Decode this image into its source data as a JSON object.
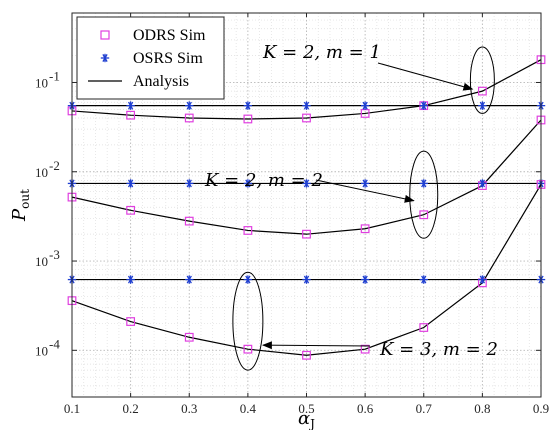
{
  "chart_data": {
    "type": "line",
    "xlabel": "α",
    "xlabel_sub": "J",
    "ylabel": "P",
    "ylabel_sub": "out",
    "xlim": [
      0.1,
      0.9
    ],
    "ylim": [
      3e-05,
      0.6
    ],
    "yscale": "log",
    "grid": true,
    "legend_position": "top-left",
    "x_ticks": [
      "0.1",
      "0.2",
      "0.3",
      "0.4",
      "0.5",
      "0.6",
      "0.7",
      "0.8",
      "0.9"
    ],
    "y_ticks": [
      {
        "value": 0.0001,
        "base": "10",
        "exp": "-4"
      },
      {
        "value": 0.001,
        "base": "10",
        "exp": "-3"
      },
      {
        "value": 0.01,
        "base": "10",
        "exp": "-2"
      },
      {
        "value": 0.1,
        "base": "10",
        "exp": "-1"
      }
    ],
    "x": [
      0.1,
      0.2,
      0.3,
      0.4,
      0.5,
      0.6,
      0.7,
      0.8,
      0.9
    ],
    "legend": [
      {
        "label": "ODRS Sim",
        "marker": "square",
        "color": "#e040e0"
      },
      {
        "label": "OSRS Sim",
        "marker": "asterisk",
        "color": "#1f3fd1"
      },
      {
        "label": "Analysis",
        "marker": "line",
        "color": "#000000"
      }
    ],
    "groups": [
      {
        "label": "K = 2, m = 1",
        "odrs_sim": [
          0.048,
          0.043,
          0.04,
          0.039,
          0.04,
          0.045,
          0.055,
          0.08,
          0.18
        ],
        "odrs_analysis": [
          0.048,
          0.043,
          0.04,
          0.039,
          0.04,
          0.045,
          0.055,
          0.08,
          0.18
        ],
        "osrs_sim": [
          0.055,
          0.055,
          0.055,
          0.055,
          0.055,
          0.055,
          0.055,
          0.055,
          0.055
        ],
        "osrs_analysis": 0.055
      },
      {
        "label": "K = 2, m = 2",
        "odrs_sim": [
          0.0052,
          0.0037,
          0.0028,
          0.0022,
          0.002,
          0.0023,
          0.0033,
          0.007,
          0.038
        ],
        "odrs_analysis": [
          0.0052,
          0.0037,
          0.0028,
          0.0022,
          0.002,
          0.0023,
          0.0033,
          0.007,
          0.038
        ],
        "osrs_sim": [
          0.0074,
          0.0074,
          0.0074,
          0.0074,
          0.0074,
          0.0074,
          0.0074,
          0.0074,
          0.0074
        ],
        "osrs_analysis": 0.0074
      },
      {
        "label": "K = 3, m = 2",
        "odrs_sim": [
          0.00036,
          0.00021,
          0.00014,
          0.000103,
          8.8e-05,
          0.000103,
          0.00018,
          0.00057,
          0.0072
        ],
        "odrs_analysis": [
          0.00036,
          0.00021,
          0.00014,
          0.000103,
          8.8e-05,
          0.000103,
          0.00018,
          0.00057,
          0.0072
        ],
        "osrs_sim": [
          0.00062,
          0.00062,
          0.00062,
          0.00062,
          0.00062,
          0.00062,
          0.00062,
          0.00062,
          0.00062
        ],
        "osrs_analysis": 0.00062
      }
    ],
    "annotations": [
      {
        "text": "K = 2, m = 1",
        "target_x": 0.8,
        "target_y": 0.08
      },
      {
        "text": "K = 2, m = 2",
        "target_x": 0.7,
        "target_y": 0.0045
      },
      {
        "text": "K = 3, m = 2",
        "target_x": 0.4,
        "target_y": 0.00013
      }
    ]
  }
}
